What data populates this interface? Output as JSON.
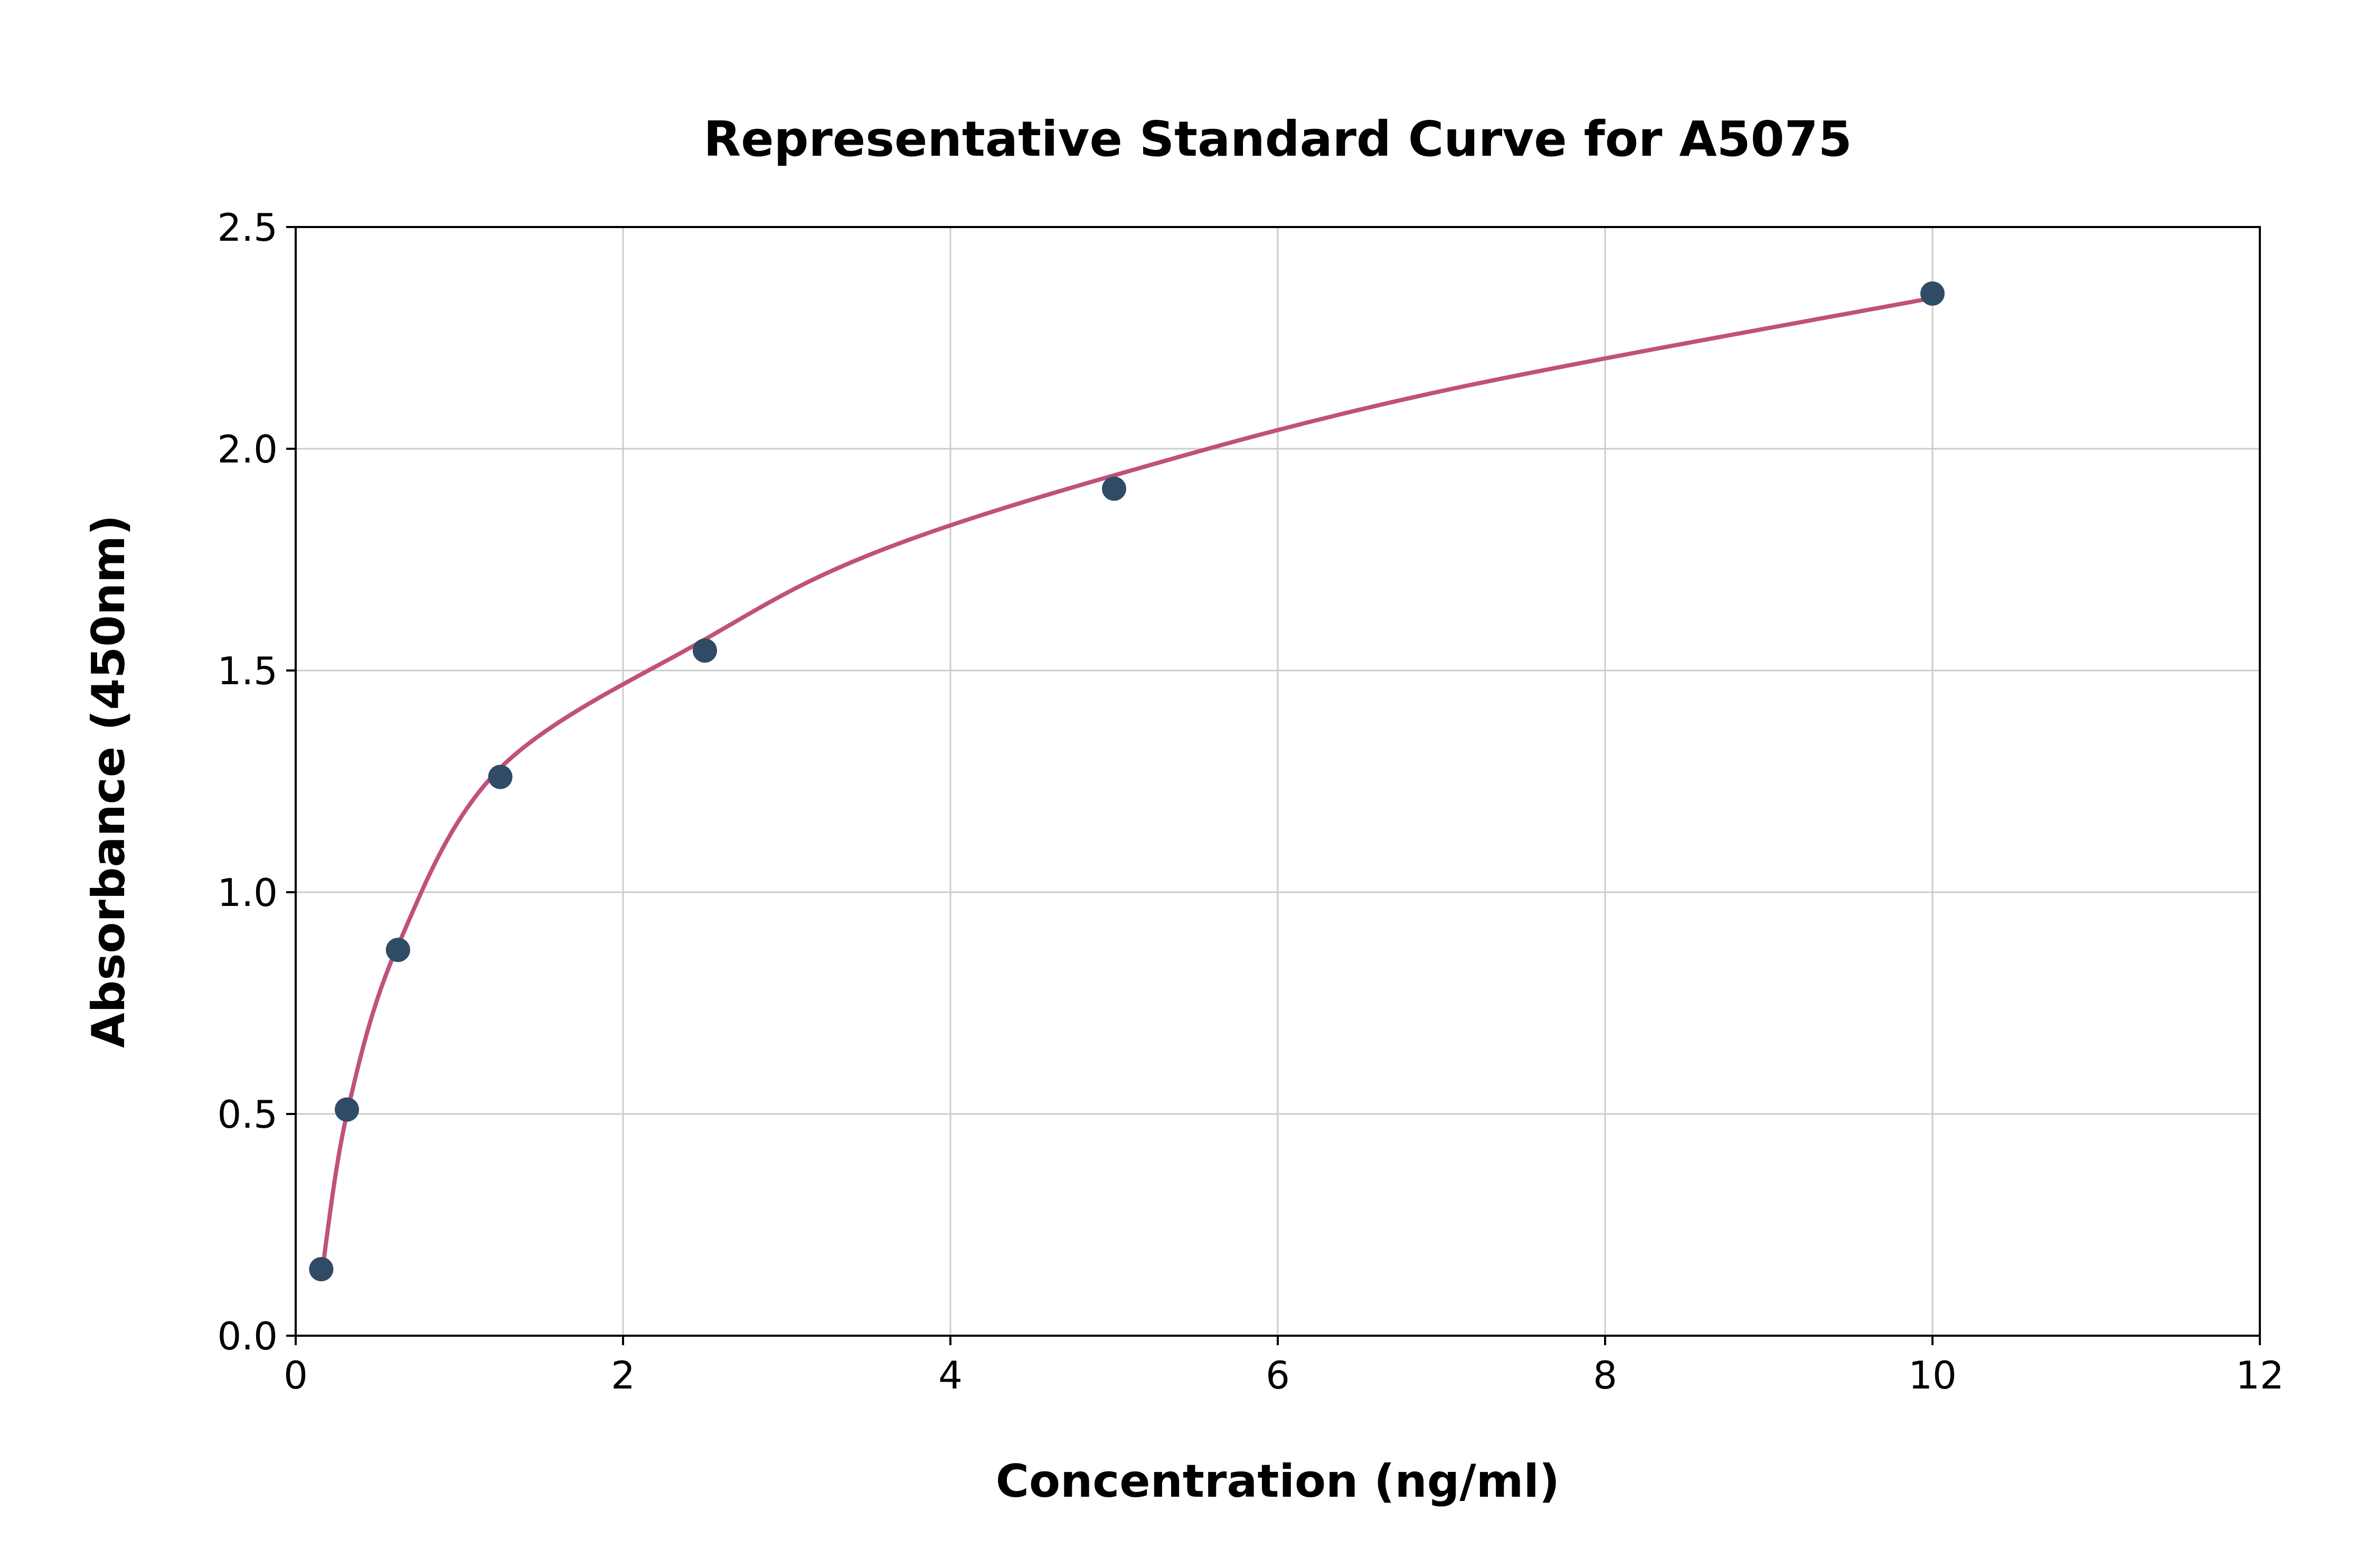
{
  "chart_data": {
    "type": "scatter",
    "title": "Representative Standard Curve for A5075",
    "xlabel": "Concentration (ng/ml)",
    "ylabel": "Absorbance (450nm)",
    "xlim": [
      0,
      12
    ],
    "ylim": [
      0,
      2.5
    ],
    "xticks": [
      "0",
      "2",
      "4",
      "6",
      "8",
      "10",
      "12"
    ],
    "yticks": [
      "0.0",
      "0.5",
      "1.0",
      "1.5",
      "2.0",
      "2.5"
    ],
    "grid": true,
    "legend": false,
    "series": [
      {
        "name": "fitted-curve",
        "kind": "line",
        "color": "#c0517a",
        "x": [
          0.156,
          0.313,
          0.625,
          1.25,
          2.5,
          3.5,
          5,
          7,
          10
        ],
        "y": [
          0.13,
          0.5,
          0.88,
          1.28,
          1.57,
          1.76,
          1.94,
          2.13,
          2.34
        ]
      },
      {
        "name": "standard-points",
        "kind": "scatter",
        "color": "#2f4b66",
        "x": [
          0.156,
          0.313,
          0.625,
          1.25,
          2.5,
          5,
          10
        ],
        "y": [
          0.15,
          0.51,
          0.87,
          1.26,
          1.545,
          1.91,
          2.35
        ]
      }
    ],
    "colors": {
      "grid": "#cccccc",
      "axis": "#000000",
      "background": "#ffffff"
    }
  }
}
